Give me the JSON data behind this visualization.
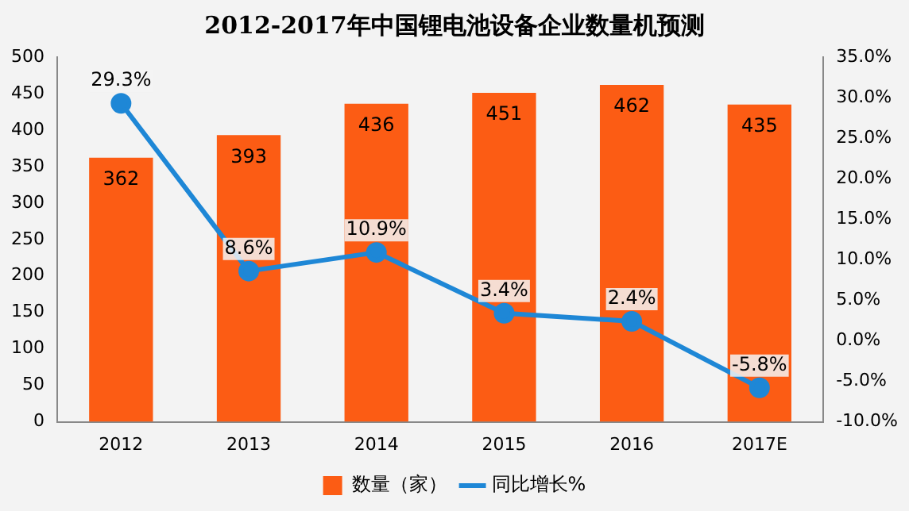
{
  "chart_data": {
    "type": "bar",
    "title": "2012-2017年中国锂电池设备企业数量机预测",
    "categories": [
      "2012",
      "2013",
      "2014",
      "2015",
      "2016",
      "2017E"
    ],
    "series": [
      {
        "name": "数量（家）",
        "color": "#fc5c14",
        "values": [
          362,
          393,
          436,
          451,
          462,
          435
        ],
        "value_labels": [
          "362",
          "393",
          "436",
          "451",
          "462",
          "435"
        ]
      },
      {
        "name": "同比增长%",
        "type": "line",
        "axis": "y2",
        "color": "#1e87d6",
        "values": [
          29.3,
          8.6,
          10.9,
          3.4,
          2.4,
          -5.8
        ],
        "value_labels": [
          "29.3%",
          "8.6%",
          "10.9%",
          "3.4%",
          "2.4%",
          "-5.8%"
        ]
      }
    ],
    "ylim": [
      0,
      500
    ],
    "yticks": [
      0,
      50,
      100,
      150,
      200,
      250,
      300,
      350,
      400,
      450,
      500
    ],
    "y2lim": [
      -10,
      35
    ],
    "y2ticks": [
      {
        "value": -10,
        "label": "-10.0%"
      },
      {
        "value": -5,
        "label": "-5.0%"
      },
      {
        "value": 0,
        "label": "0.0%"
      },
      {
        "value": 5,
        "label": "5.0%"
      },
      {
        "value": 10,
        "label": "10.0%"
      },
      {
        "value": 15,
        "label": "15.0%"
      },
      {
        "value": 20,
        "label": "20.0%"
      },
      {
        "value": 25,
        "label": "25.0%"
      },
      {
        "value": 30,
        "label": "30.0%"
      },
      {
        "value": 35,
        "label": "35.0%"
      }
    ],
    "grid": false,
    "legend": "bottom",
    "marker": "circle",
    "line_style": "solid"
  }
}
